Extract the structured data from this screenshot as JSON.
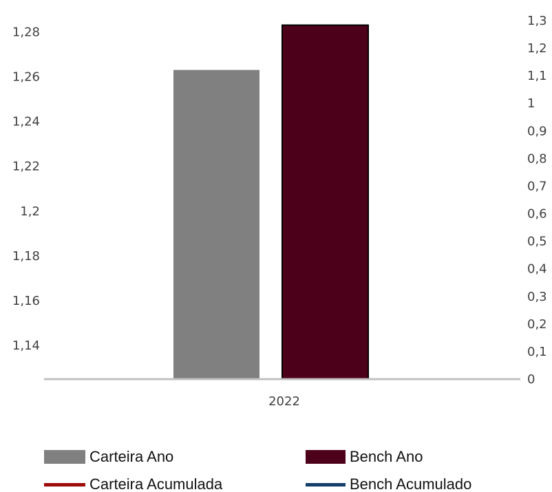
{
  "chart_data": {
    "type": "bar",
    "categories": [
      "2022"
    ],
    "series": [
      {
        "name": "Carteira Ano",
        "values": [
          1.263
        ],
        "axis": "left",
        "color": "#808080"
      },
      {
        "name": "Bench Ano",
        "values": [
          1.283
        ],
        "axis": "left",
        "color": "#4d0019"
      }
    ],
    "line_series": [
      {
        "name": "Carteira Acumulada",
        "values": [],
        "color": "#9e0b0b"
      },
      {
        "name": "Bench Acumulado",
        "values": [],
        "color": "#163f6b"
      }
    ],
    "y_left": {
      "ticks": [
        "1,14",
        "1,16",
        "1,18",
        "1,2",
        "1,22",
        "1,24",
        "1,26",
        "1,28"
      ],
      "tick_values": [
        1.14,
        1.16,
        1.18,
        1.2,
        1.22,
        1.24,
        1.26,
        1.28
      ],
      "ylim": [
        1.125,
        1.285
      ]
    },
    "y_right": {
      "ticks": [
        "0",
        "0,1",
        "0,2",
        "0,3",
        "0,4",
        "0,5",
        "0,6",
        "0,7",
        "0,8",
        "0,9",
        "1",
        "1,1",
        "1,2",
        "1,3"
      ],
      "tick_values": [
        0,
        0.1,
        0.2,
        0.3,
        0.4,
        0.5,
        0.6,
        0.7,
        0.8,
        0.9,
        1.0,
        1.1,
        1.2,
        1.3
      ],
      "ylim": [
        0,
        1.3
      ]
    },
    "title": "",
    "xlabel": "",
    "ylabel": "",
    "grid": false,
    "legend_placement": "bottom",
    "axis_color": "#c0c0c0",
    "bar_outline_color": "#000000"
  }
}
